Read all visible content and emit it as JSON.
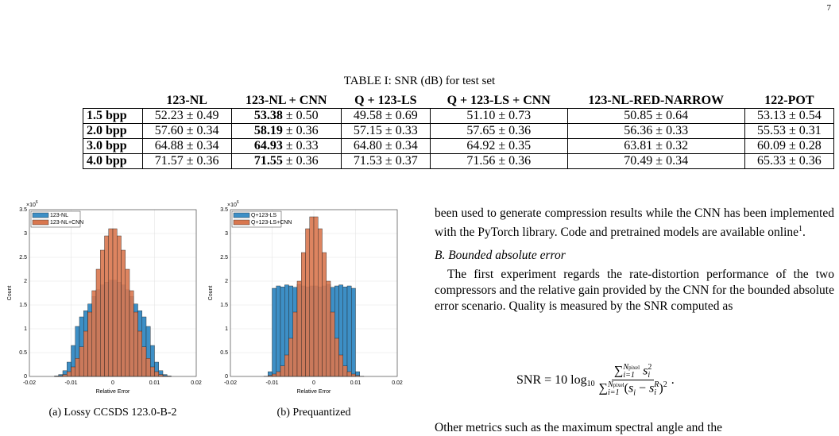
{
  "page_number": "7",
  "table": {
    "caption": "TABLE I: SNR (dB) for test set",
    "separator": "±",
    "bold_column": 1,
    "columns": [
      "123-NL",
      "123-NL + CNN",
      "Q + 123-LS",
      "Q + 123-LS + CNN",
      "123-NL-RED-NARROW",
      "122-POT"
    ],
    "rows": [
      {
        "label": "1.5 bpp",
        "cells": [
          {
            "mean": "52.23",
            "std": "0.49"
          },
          {
            "mean": "53.38",
            "std": "0.50"
          },
          {
            "mean": "49.58",
            "std": "0.69"
          },
          {
            "mean": "51.10",
            "std": "0.73"
          },
          {
            "mean": "50.85",
            "std": "0.64"
          },
          {
            "mean": "53.13",
            "std": "0.54"
          }
        ]
      },
      {
        "label": "2.0 bpp",
        "cells": [
          {
            "mean": "57.60",
            "std": "0.34"
          },
          {
            "mean": "58.19",
            "std": "0.36"
          },
          {
            "mean": "57.15",
            "std": "0.33"
          },
          {
            "mean": "57.65",
            "std": "0.36"
          },
          {
            "mean": "56.36",
            "std": "0.33"
          },
          {
            "mean": "55.53",
            "std": "0.31"
          }
        ]
      },
      {
        "label": "3.0 bpp",
        "cells": [
          {
            "mean": "64.88",
            "std": "0.34"
          },
          {
            "mean": "64.93",
            "std": "0.33"
          },
          {
            "mean": "64.80",
            "std": "0.34"
          },
          {
            "mean": "64.92",
            "std": "0.35"
          },
          {
            "mean": "63.81",
            "std": "0.32"
          },
          {
            "mean": "60.09",
            "std": "0.28"
          }
        ]
      },
      {
        "label": "4.0 bpp",
        "cells": [
          {
            "mean": "71.57",
            "std": "0.36"
          },
          {
            "mean": "71.55",
            "std": "0.36"
          },
          {
            "mean": "71.53",
            "std": "0.37"
          },
          {
            "mean": "71.56",
            "std": "0.36"
          },
          {
            "mean": "70.49",
            "std": "0.34"
          },
          {
            "mean": "65.33",
            "std": "0.36"
          }
        ]
      }
    ]
  },
  "chart_data": [
    {
      "type": "histogram",
      "caption": "(a) Lossy CCSDS 123.0-B-2",
      "x_label": "Relative Error",
      "y_label": "Count",
      "y_scale": {
        "base": "×10",
        "exponent": "6"
      },
      "grid": true,
      "legend": "upper-left",
      "bins": [
        -0.015,
        -0.014,
        -0.013,
        -0.012,
        -0.011,
        -0.01,
        -0.009,
        -0.008,
        -0.007,
        -0.006,
        -0.005,
        -0.004,
        -0.003,
        -0.002,
        -0.001,
        0,
        0.001,
        0.002,
        0.003,
        0.004,
        0.005,
        0.006,
        0.007,
        0.008,
        0.009,
        0.01,
        0.011,
        0.012,
        0.013,
        0.014,
        0.015
      ],
      "series": [
        {
          "name": "123-NL",
          "color": "#3d8fc6",
          "values": [
            0,
            0.01,
            0.04,
            0.12,
            0.3,
            0.65,
            1.05,
            1.25,
            1.38,
            1.52,
            1.68,
            1.82,
            1.92,
            1.98,
            2.02,
            2.02,
            1.98,
            1.92,
            1.82,
            1.68,
            1.52,
            1.38,
            1.25,
            1.05,
            0.65,
            0.3,
            0.12,
            0.04,
            0.01,
            0
          ]
        },
        {
          "name": "123-NL+CNN",
          "color": "#d9774f",
          "values": [
            0,
            0.005,
            0.015,
            0.04,
            0.1,
            0.2,
            0.38,
            0.62,
            0.95,
            1.35,
            1.8,
            2.25,
            2.65,
            2.95,
            3.1,
            3.1,
            2.95,
            2.65,
            2.25,
            1.8,
            1.35,
            0.95,
            0.62,
            0.38,
            0.2,
            0.1,
            0.04,
            0.015,
            0.005,
            0
          ]
        }
      ],
      "xlim": [
        -0.02,
        0.02
      ],
      "xticks": [
        -0.02,
        -0.01,
        0,
        0.01,
        0.02
      ],
      "ylim": [
        0,
        3.5
      ],
      "yticks": [
        0,
        0.5,
        1,
        1.5,
        2,
        2.5,
        3,
        3.5
      ]
    },
    {
      "type": "histogram",
      "caption": "(b) Prequantized",
      "x_label": "Relative Error",
      "y_label": "Count",
      "y_scale": {
        "base": "×10",
        "exponent": "6"
      },
      "grid": true,
      "legend": "upper-left",
      "bins": [
        -0.015,
        -0.014,
        -0.013,
        -0.012,
        -0.011,
        -0.01,
        -0.009,
        -0.008,
        -0.007,
        -0.006,
        -0.005,
        -0.004,
        -0.003,
        -0.002,
        -0.001,
        0,
        0.001,
        0.002,
        0.003,
        0.004,
        0.005,
        0.006,
        0.007,
        0.008,
        0.009,
        0.01,
        0.011,
        0.012,
        0.013,
        0.014,
        0.015
      ],
      "series": [
        {
          "name": "Q+123-LS",
          "color": "#3d8fc6",
          "values": [
            0,
            0,
            0,
            0,
            0.1,
            1.85,
            1.9,
            1.88,
            1.92,
            1.9,
            1.87,
            1.93,
            1.9,
            1.88,
            1.9,
            1.9,
            1.88,
            1.9,
            1.93,
            1.87,
            1.9,
            1.92,
            1.88,
            1.9,
            1.85,
            0.1,
            0,
            0,
            0,
            0
          ]
        },
        {
          "name": "Q+123-LS+CNN",
          "color": "#d9774f",
          "values": [
            0,
            0,
            0,
            0.005,
            0.02,
            0.05,
            0.1,
            0.22,
            0.45,
            0.8,
            1.35,
            2.0,
            2.6,
            3.1,
            3.35,
            3.35,
            3.1,
            2.6,
            2.0,
            1.35,
            0.8,
            0.45,
            0.22,
            0.1,
            0.05,
            0.02,
            0.005,
            0,
            0,
            0
          ]
        }
      ],
      "xlim": [
        -0.02,
        0.02
      ],
      "xticks": [
        -0.02,
        -0.01,
        0,
        0.01,
        0.02
      ],
      "ylim": [
        0,
        3.5
      ],
      "yticks": [
        0,
        0.5,
        1,
        1.5,
        2,
        2.5,
        3,
        3.5
      ]
    }
  ],
  "text": {
    "paragraph_1": "been used to generate compression results while the CNN has been implemented with the PyTorch library. Code and pretrained models are available online",
    "footnote_mark": "1",
    "period": ".",
    "section": "B. Bounded absolute error",
    "paragraph_2": "The first experiment regards the rate-distortion performance of the two compressors and the relative gain provided by the CNN for the bounded absolute error scenario. Quality is measured by the SNR computed as",
    "equation": {
      "lhs": "SNR = 10 log",
      "base": "10",
      "sum": "∑",
      "upper": "N",
      "upper_sub": "pixel",
      "lower": "i=1",
      "var": "s",
      "sub": "i",
      "sq": "2",
      "open": "(",
      "minus": " − ",
      "ref": "R",
      "close": ")",
      "end": "."
    },
    "paragraph_3": "Other metrics such as the maximum spectral angle and the"
  }
}
